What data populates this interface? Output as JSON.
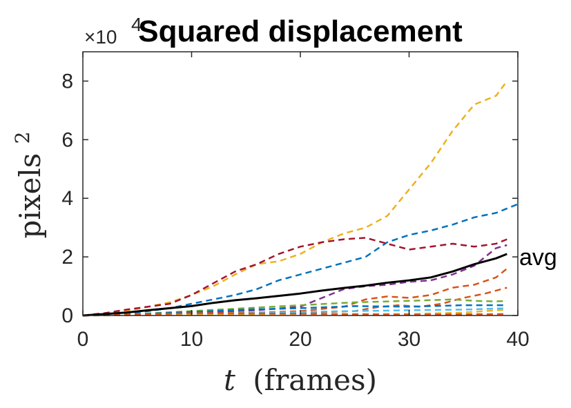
{
  "chart_data": {
    "type": "line",
    "title": "Squared displacement",
    "xlabel_var": "t",
    "xlabel_rest": "(frames)",
    "ylabel_base": "pixels",
    "ylabel_sup": "2",
    "y_exponent_base": "×10",
    "y_exponent_power": "4",
    "xlim": [
      0,
      40
    ],
    "ylim": [
      0,
      90000
    ],
    "y_scale": 10000,
    "xticks": [
      0,
      10,
      20,
      30,
      40
    ],
    "yticks": [
      0,
      20000,
      40000,
      60000,
      80000
    ],
    "xtick_labels": [
      "0",
      "10",
      "20",
      "30",
      "40"
    ],
    "ytick_labels": [
      "0",
      "2",
      "4",
      "6",
      "8"
    ],
    "grid": false,
    "annotation": "avg",
    "series": [
      {
        "color": "#EDB120",
        "style": "dashed",
        "x": [
          0,
          2,
          4,
          6,
          8,
          10,
          12,
          14,
          16,
          18,
          20,
          22,
          24,
          26,
          28,
          30,
          32,
          34,
          36,
          38,
          39
        ],
        "y": [
          0,
          500,
          1500,
          3000,
          4500,
          7000,
          10000,
          14000,
          17500,
          18500,
          21000,
          25000,
          28000,
          30000,
          34000,
          43000,
          52000,
          63000,
          72000,
          75000,
          80000
        ]
      },
      {
        "color": "#0072BD",
        "style": "dashed",
        "x": [
          0,
          2,
          4,
          6,
          8,
          10,
          12,
          14,
          16,
          18,
          20,
          22,
          24,
          26,
          28,
          30,
          32,
          34,
          36,
          38,
          40
        ],
        "y": [
          0,
          300,
          700,
          1500,
          2500,
          4000,
          5500,
          7000,
          9000,
          12000,
          14000,
          16000,
          18000,
          20000,
          25000,
          27500,
          29000,
          31000,
          33500,
          35000,
          38000
        ]
      },
      {
        "color": "#A2142F",
        "style": "dashed",
        "x": [
          0,
          2,
          4,
          6,
          8,
          10,
          12,
          14,
          16,
          18,
          20,
          22,
          24,
          26,
          28,
          30,
          32,
          34,
          36,
          38,
          39
        ],
        "y": [
          0,
          800,
          2000,
          3000,
          4000,
          7000,
          11000,
          15000,
          17500,
          21000,
          23500,
          25000,
          26000,
          26500,
          24500,
          22500,
          23500,
          24500,
          23500,
          24500,
          26000
        ]
      },
      {
        "color": "#7E2F8E",
        "style": "dashed",
        "x": [
          0,
          4,
          8,
          12,
          16,
          20,
          22,
          24,
          26,
          28,
          30,
          32,
          34,
          36,
          38,
          39
        ],
        "y": [
          0,
          300,
          700,
          1200,
          1800,
          3000,
          6000,
          9000,
          10000,
          10500,
          11500,
          12000,
          14000,
          17000,
          23000,
          24000
        ]
      },
      {
        "color": "#D95319",
        "style": "dashed",
        "x": [
          0,
          4,
          8,
          12,
          16,
          20,
          24,
          26,
          28,
          30,
          32,
          34,
          36,
          38,
          39
        ],
        "y": [
          0,
          300,
          500,
          700,
          1000,
          1500,
          3000,
          5500,
          6500,
          6000,
          7000,
          9500,
          10500,
          13000,
          16000
        ]
      },
      {
        "color": "#D95319",
        "style": "dashed",
        "x": [
          0,
          5,
          10,
          15,
          20,
          25,
          27,
          29,
          31,
          33,
          35,
          37,
          39
        ],
        "y": [
          0,
          200,
          400,
          600,
          900,
          1500,
          2800,
          3500,
          3000,
          4000,
          6000,
          7500,
          9500
        ]
      },
      {
        "color": "#77AC30",
        "style": "dashed",
        "x": [
          0,
          5,
          10,
          15,
          20,
          25,
          30,
          34,
          36,
          38,
          39
        ],
        "y": [
          0,
          500,
          1500,
          2500,
          3500,
          4500,
          5000,
          5500,
          5000,
          4800,
          5000
        ]
      },
      {
        "color": "#4DBEEE",
        "style": "dashed",
        "x": [
          0,
          5,
          10,
          15,
          20,
          25,
          30,
          35,
          39
        ],
        "y": [
          0,
          200,
          500,
          800,
          1200,
          1500,
          1800,
          2000,
          2500
        ]
      },
      {
        "color": "#0072BD",
        "style": "dashed",
        "x": [
          0,
          5,
          10,
          15,
          20,
          25,
          30,
          35,
          39
        ],
        "y": [
          0,
          400,
          1200,
          2000,
          2500,
          3200,
          3000,
          3500,
          3500
        ]
      },
      {
        "color": "#EDB120",
        "style": "dashed",
        "x": [
          0,
          5,
          10,
          15,
          20,
          25,
          30,
          35,
          39
        ],
        "y": [
          0,
          100,
          300,
          400,
          600,
          500,
          500,
          1000,
          2000
        ]
      },
      {
        "color": "#D95319",
        "style": "dashed",
        "x": [
          0,
          5,
          10,
          15,
          20,
          25,
          30,
          35,
          39
        ],
        "y": [
          0,
          300,
          800,
          700,
          600,
          400,
          300,
          400,
          500
        ]
      },
      {
        "color": "#000000",
        "style": "solid",
        "name": "avg",
        "x": [
          0,
          2,
          4,
          6,
          8,
          10,
          12,
          14,
          16,
          18,
          20,
          22,
          24,
          26,
          28,
          30,
          32,
          34,
          36,
          38,
          39
        ],
        "y": [
          0,
          500,
          1000,
          1800,
          2500,
          3200,
          4300,
          5200,
          5900,
          6700,
          7500,
          8500,
          9400,
          10200,
          11200,
          12000,
          13000,
          15000,
          17500,
          19500,
          21000
        ]
      }
    ]
  }
}
